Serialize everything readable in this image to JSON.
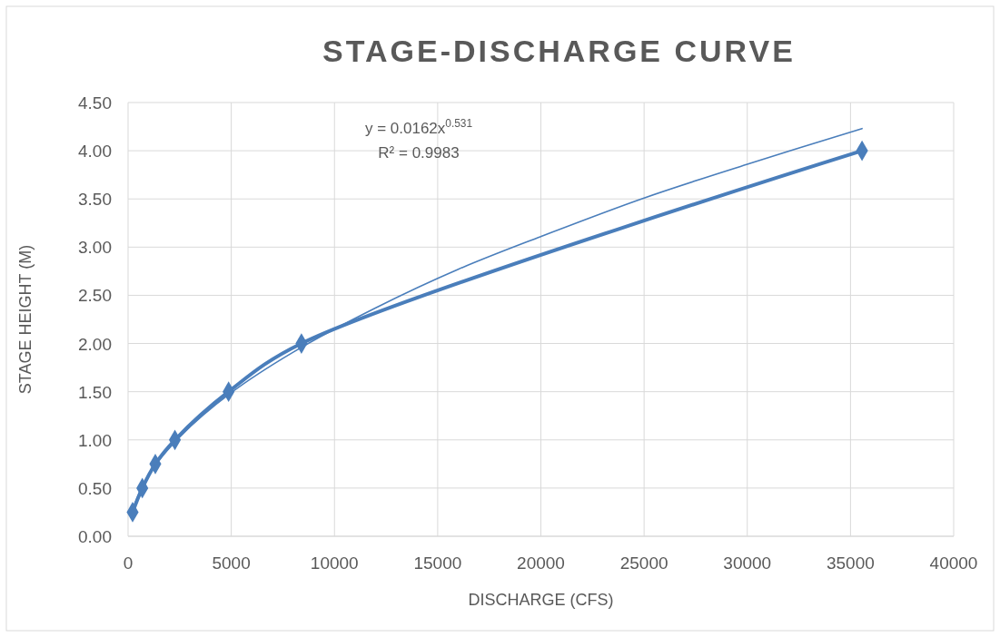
{
  "chart_data": {
    "type": "line",
    "title": "STAGE-DISCHARGE CURVE",
    "xlabel": "DISCHARGE (CFS)",
    "ylabel": "STAGE HEIGHT (M)",
    "xlim": [
      0,
      40000
    ],
    "xticks": [
      0,
      5000,
      10000,
      15000,
      20000,
      25000,
      30000,
      35000,
      40000
    ],
    "ylim": [
      0,
      4.5
    ],
    "yticks": [
      {
        "value": 0,
        "label": "0.00"
      },
      {
        "value": 0.5,
        "label": "0.50"
      },
      {
        "value": 1,
        "label": "1.00"
      },
      {
        "value": 1.5,
        "label": "1.50"
      },
      {
        "value": 2,
        "label": "2.00"
      },
      {
        "value": 2.5,
        "label": "2.50"
      },
      {
        "value": 3,
        "label": "3.00"
      },
      {
        "value": 3.5,
        "label": "3.50"
      },
      {
        "value": 4,
        "label": "4.00"
      },
      {
        "value": 4.5,
        "label": "4.50"
      }
    ],
    "grid": true,
    "series": [
      {
        "type": "line",
        "color": "#4a7ebb",
        "marker": "diamond",
        "x": [
          220,
          690,
          1320,
          2270,
          4870,
          8400,
          35560
        ],
        "values": [
          0.25,
          0.5,
          0.75,
          1.0,
          1.5,
          2.0,
          4.0
        ]
      },
      {
        "type": "line",
        "color": "#4a7ebb",
        "marker": "none",
        "x": [
          220,
          1000,
          2500,
          5000,
          8000,
          12000,
          16000,
          20000,
          25000,
          30000,
          35560
        ],
        "values": [
          0.28,
          0.64,
          1.03,
          1.49,
          1.91,
          2.37,
          2.77,
          3.11,
          3.51,
          3.86,
          4.23
        ]
      }
    ],
    "annotations": [
      "y = 0.0162x$^{0.531}$",
      "R² = 0.9983"
    ]
  }
}
